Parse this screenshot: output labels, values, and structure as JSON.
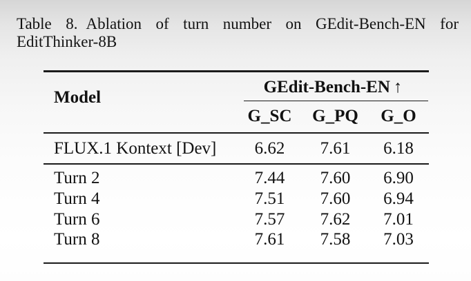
{
  "caption": {
    "label": "Table 8.",
    "line1_rest": "Ablation of turn number on GEdit-Bench-EN for",
    "line2": "EditThinker-8B"
  },
  "table": {
    "model_header": "Model",
    "group_header": "GEdit-Bench-EN",
    "group_arrow": "↑",
    "sub_headers": [
      "G_SC",
      "G_PQ",
      "G_O"
    ],
    "rows": [
      {
        "model": "FLUX.1 Kontext [Dev]",
        "g_sc": "6.62",
        "g_pq": "7.61",
        "g_o": "6.18"
      },
      {
        "model": "Turn 2",
        "g_sc": "7.44",
        "g_pq": "7.60",
        "g_o": "6.90"
      },
      {
        "model": "Turn 4",
        "g_sc": "7.51",
        "g_pq": "7.60",
        "g_o": "6.94"
      },
      {
        "model": "Turn 6",
        "g_sc": "7.57",
        "g_pq": "7.62",
        "g_o": "7.01"
      },
      {
        "model": "Turn 8",
        "g_sc": "7.61",
        "g_pq": "7.58",
        "g_o": "7.03"
      }
    ]
  },
  "colors": {
    "text": "#121212",
    "rule": "#1a1a1a",
    "background_top": "#d6d6d6",
    "background_bottom": "#ffffff"
  }
}
